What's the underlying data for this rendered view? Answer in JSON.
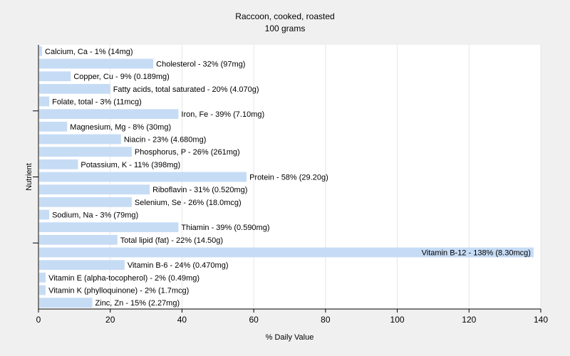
{
  "chart_data": {
    "type": "bar",
    "orientation": "horizontal",
    "title": "Raccoon, cooked, roasted",
    "subtitle": "100 grams",
    "xlabel": "% Daily Value",
    "ylabel": "Nutrient",
    "xlim": [
      0,
      140
    ],
    "xticks": [
      0,
      20,
      40,
      60,
      80,
      100,
      120,
      140
    ],
    "grid": true,
    "colors": {
      "bar": "#c6dcf5",
      "plot_bg": "#ffffff",
      "page_bg": "#f0f0f0",
      "grid": "#e6e6e6",
      "axis": "#000000"
    },
    "categories": [
      "Calcium, Ca",
      "Cholesterol",
      "Copper, Cu",
      "Fatty acids, total saturated",
      "Folate, total",
      "Iron, Fe",
      "Magnesium, Mg",
      "Niacin",
      "Phosphorus, P",
      "Potassium, K",
      "Protein",
      "Riboflavin",
      "Selenium, Se",
      "Sodium, Na",
      "Thiamin",
      "Total lipid (fat)",
      "Vitamin B-12",
      "Vitamin B-6",
      "Vitamin E (alpha-tocopherol)",
      "Vitamin K (phylloquinone)",
      "Zinc, Zn"
    ],
    "values": [
      1,
      32,
      9,
      20,
      3,
      39,
      8,
      23,
      26,
      11,
      58,
      31,
      26,
      3,
      39,
      22,
      138,
      24,
      2,
      2,
      15
    ],
    "labels": [
      "Calcium, Ca - 1% (14mg)",
      "Cholesterol - 32% (97mg)",
      "Copper, Cu - 9% (0.189mg)",
      "Fatty acids, total saturated - 20% (4.070g)",
      "Folate, total - 3% (11mcg)",
      "Iron, Fe - 39% (7.10mg)",
      "Magnesium, Mg - 8% (30mg)",
      "Niacin - 23% (4.680mg)",
      "Phosphorus, P - 26% (261mg)",
      "Potassium, K - 11% (398mg)",
      "Protein - 58% (29.20g)",
      "Riboflavin - 31% (0.520mg)",
      "Selenium, Se - 26% (18.0mcg)",
      "Sodium, Na - 3% (79mg)",
      "Thiamin - 39% (0.590mg)",
      "Total lipid (fat) - 22% (14.50g)",
      "Vitamin B-12 - 138% (8.30mcg)",
      "Vitamin B-6 - 24% (0.470mg)",
      "Vitamin E (alpha-tocopherol) - 2% (0.49mg)",
      "Vitamin K (phylloquinone) - 2% (1.7mcg)",
      "Zinc, Zn - 15% (2.27mg)"
    ]
  }
}
